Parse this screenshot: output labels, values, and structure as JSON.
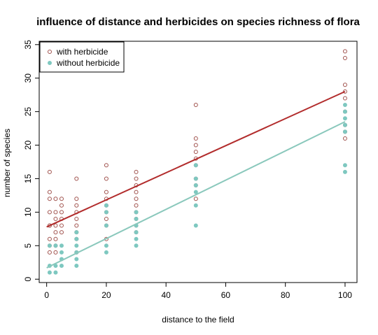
{
  "chart_data": {
    "type": "scatter",
    "title": "influence of distance and herbicides on species richness of flora",
    "xlabel": "distance to the field",
    "ylabel": "number of species",
    "xlim": [
      -2.5,
      104
    ],
    "ylim": [
      -0.5,
      35.5
    ],
    "xticks": [
      "0",
      "20",
      "40",
      "60",
      "80",
      "100"
    ],
    "yticks": [
      "0",
      "5",
      "10",
      "15",
      "20",
      "25",
      "30",
      "35"
    ],
    "legend_position": "top-left",
    "grid": false,
    "series": [
      {
        "name": "with herbicide",
        "color": "#a0524d",
        "marker": "open-circle",
        "x": [
          1,
          1,
          1,
          1,
          1,
          1,
          1,
          1,
          1,
          3,
          3,
          3,
          3,
          3,
          3,
          3,
          3,
          5,
          5,
          5,
          5,
          5,
          5,
          10,
          10,
          10,
          10,
          10,
          10,
          10,
          10,
          10,
          20,
          20,
          20,
          20,
          20,
          20,
          20,
          20,
          20,
          30,
          30,
          30,
          30,
          30,
          30,
          30,
          30,
          30,
          30,
          50,
          50,
          50,
          50,
          50,
          50,
          50,
          50,
          50,
          100,
          100,
          100,
          100,
          100,
          100,
          100,
          100,
          100
        ],
        "y": [
          16,
          13,
          12,
          10,
          8,
          6,
          5,
          4,
          8,
          12,
          10,
          9,
          8,
          7,
          6,
          5,
          4,
          12,
          11,
          10,
          9,
          8,
          7,
          15,
          12,
          11,
          10,
          9,
          8,
          7,
          6,
          4,
          17,
          15,
          13,
          12,
          11,
          10,
          9,
          8,
          6,
          16,
          15,
          14,
          13,
          12,
          11,
          10,
          9,
          8,
          7,
          26,
          21,
          20,
          19,
          18,
          17,
          15,
          14,
          12,
          34,
          33,
          29,
          28,
          27,
          25,
          23,
          22,
          21
        ],
        "trend": {
          "x": [
            0,
            100
          ],
          "y": [
            7.8,
            28.0
          ],
          "color": "#b22c2c"
        }
      },
      {
        "name": "without herbicide",
        "color": "#7ec8c0",
        "marker": "filled-circle",
        "x": [
          1,
          1,
          1,
          3,
          3,
          3,
          5,
          5,
          5,
          5,
          10,
          10,
          10,
          10,
          10,
          10,
          20,
          20,
          20,
          20,
          20,
          30,
          30,
          30,
          30,
          30,
          30,
          50,
          50,
          50,
          50,
          50,
          50,
          100,
          100,
          100,
          100,
          100,
          100,
          100
        ],
        "y": [
          2,
          1,
          5,
          2,
          1,
          5,
          5,
          4,
          3,
          2,
          7,
          6,
          5,
          4,
          3,
          2,
          11,
          10,
          8,
          5,
          4,
          10,
          9,
          8,
          7,
          6,
          5,
          17,
          15,
          14,
          13,
          11,
          8,
          26,
          25,
          24,
          23,
          22,
          17,
          16
        ],
        "trend": {
          "x": [
            0,
            100
          ],
          "y": [
            1.7,
            23.5
          ],
          "color": "#8ac8bc"
        }
      }
    ]
  }
}
